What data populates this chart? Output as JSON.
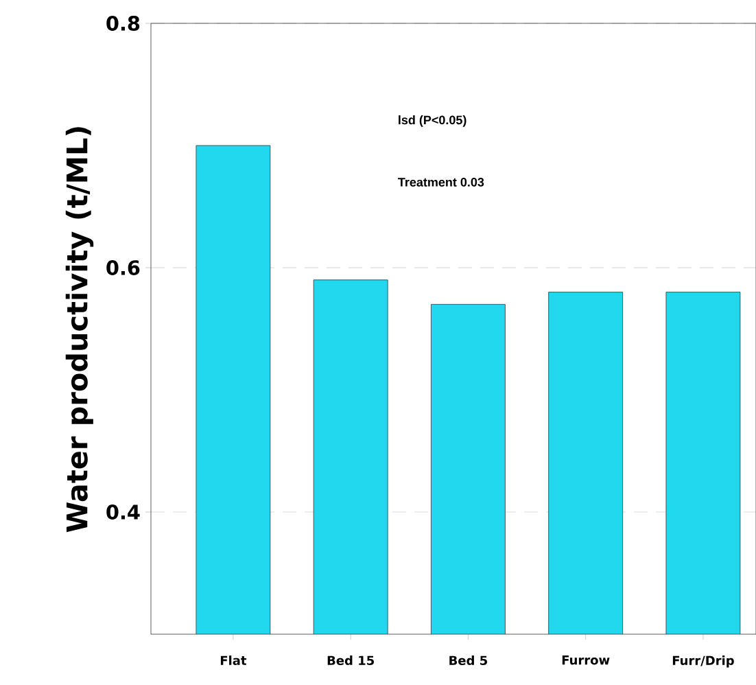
{
  "chart_data": {
    "type": "bar",
    "ylabel": "Water productivity (t/ML)",
    "categories": [
      "Flat",
      "Bed 15",
      "Bed 5",
      "Furrow",
      "Furr/Drip"
    ],
    "values": [
      0.7,
      0.59,
      0.57,
      0.58,
      0.58
    ],
    "color": "#22d8ee",
    "ylim": [
      0.3,
      0.8
    ],
    "yticks": [
      0.4,
      0.6,
      0.8
    ],
    "grid": "y",
    "annotations": [
      "lsd (P<0.05)",
      "Treatment 0.03"
    ]
  }
}
